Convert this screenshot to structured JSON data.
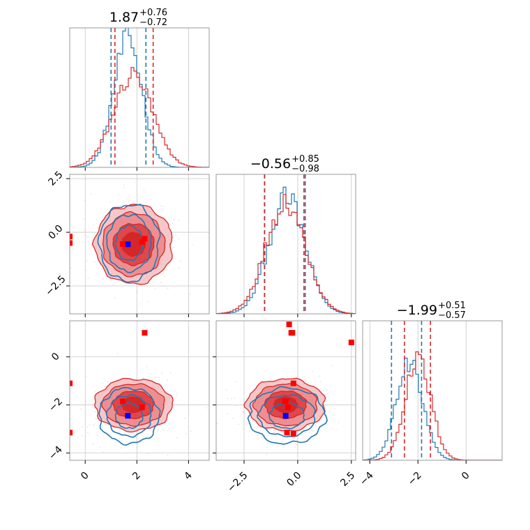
{
  "colors": {
    "red": "#d62728",
    "blue": "#1f77b4",
    "red_fill_light": "#f6c7c8",
    "red_fill_mid": "#ee8e90",
    "red_fill_dark": "#e0474a",
    "marker_blue": "#0000ff",
    "marker_red": "#ff0000",
    "grid": "#c8c8c8",
    "frame": "#7f7f7f"
  },
  "chart_data": {
    "type": "corner",
    "parameters": [
      {
        "range": [
          -0.6,
          4.8
        ],
        "ticks": [
          0,
          2,
          4
        ],
        "tick_labels": [
          "0",
          "2",
          "4"
        ]
      },
      {
        "range": [
          -3.8,
          2.7
        ],
        "ticks": [
          -2.5,
          0.0,
          2.5
        ],
        "tick_labels": [
          "−2.5",
          "0.0",
          "2.5"
        ]
      },
      {
        "range": [
          -4.3,
          1.5
        ],
        "ticks": [
          -4,
          -2,
          0
        ],
        "tick_labels": [
          "−4",
          "−2",
          "0"
        ]
      }
    ],
    "titles": [
      {
        "median": "1.87",
        "plus": "+0.76",
        "minus": "−0.72"
      },
      {
        "median": "−0.56",
        "plus": "+0.85",
        "minus": "−0.98"
      },
      {
        "median": "−1.99",
        "plus": "+0.51",
        "minus": "−0.57"
      }
    ],
    "series": [
      {
        "color_key": "blue",
        "means": [
          1.7,
          -0.5,
          -2.45
        ],
        "sigmas": [
          0.55,
          0.85,
          0.55
        ],
        "histograms": [
          {
            "center": 1.65,
            "sigma": 0.55,
            "peak": 1.0
          },
          {
            "center": -0.5,
            "sigma": 0.85,
            "peak": 0.9
          },
          {
            "center": -2.35,
            "sigma": 0.55,
            "peak": 0.75
          }
        ],
        "quantile_lines": [
          [
            1.0,
            2.35
          ],
          [
            -1.55,
            0.35
          ],
          [
            -3.1,
            -1.85
          ]
        ]
      },
      {
        "color_key": "red",
        "means": [
          1.87,
          -0.56,
          -1.99
        ],
        "sigmas": [
          0.75,
          0.92,
          0.54
        ],
        "histograms": [
          {
            "center": 1.85,
            "sigma": 0.75,
            "peak": 0.72
          },
          {
            "center": -0.56,
            "sigma": 0.92,
            "peak": 0.88
          },
          {
            "center": -2.0,
            "sigma": 0.54,
            "peak": 0.78
          }
        ],
        "quantile_lines": [
          [
            1.15,
            2.63
          ],
          [
            -1.54,
            0.29
          ],
          [
            -2.56,
            -1.48
          ]
        ]
      }
    ],
    "markers": [
      {
        "color_key": "marker_blue",
        "point": [
          1.65,
          -0.56,
          -2.45
        ]
      },
      {
        "color_key": "marker_red",
        "point": [
          2.3,
          -0.3,
          1.0
        ]
      },
      {
        "color_key": "marker_red",
        "point": [
          2.2,
          -0.45,
          -2.1
        ]
      },
      {
        "color_key": "marker_red",
        "point": [
          1.45,
          -0.55,
          -1.85
        ]
      },
      {
        "color_key": "marker_red",
        "point": [
          -0.6,
          -0.2,
          -1.1
        ]
      },
      {
        "color_key": "marker_red",
        "point": [
          -0.6,
          -0.5,
          -3.15
        ]
      }
    ],
    "panel_markers": [
      {
        "panel": [
          2,
          1
        ],
        "color_key": "marker_red",
        "points": [
          [
            -0.4,
            1.35
          ],
          [
            -0.25,
            1.0
          ],
          [
            2.5,
            0.6
          ],
          [
            -0.2,
            -3.2
          ],
          [
            -0.6,
            -1.85
          ]
        ]
      }
    ],
    "grid": true
  }
}
